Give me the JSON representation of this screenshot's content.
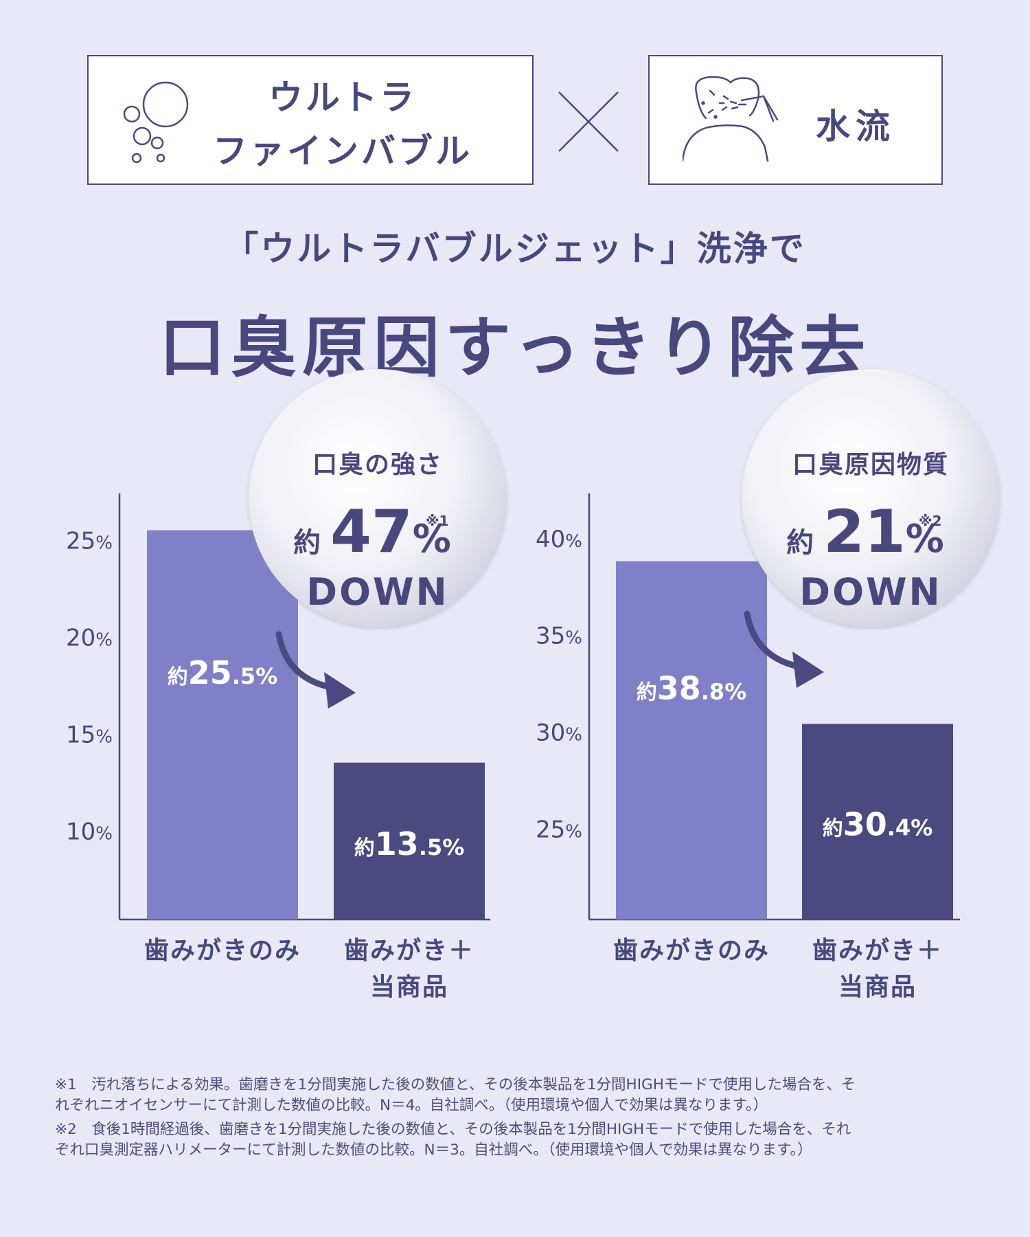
{
  "header": {
    "left_line1": "ウルトラ",
    "left_line2": "ファインバブル",
    "left_icon": "bubbles-icon",
    "cross_icon": "cross-icon",
    "right_icon": "tooth-water-jet-icon",
    "right_label": "水流"
  },
  "subtitle": "「ウルトラバブルジェット」洗浄で",
  "headline": "口臭原因すっきり除去",
  "colors": {
    "bar_light": "#8080c8",
    "bar_dark": "#4a4a80",
    "text": "#48477e",
    "background": "#e9e8f6"
  },
  "chart_data": [
    {
      "type": "bar",
      "categories": [
        "歯みがきのみ",
        "歯みがき＋\n当商品"
      ],
      "values": [
        25.5,
        13.5
      ],
      "value_labels": [
        {
          "prefix": "約",
          "int": "25",
          "dec": ".5%"
        },
        {
          "prefix": "約",
          "int": "13",
          "dec": ".5%"
        }
      ],
      "y_ticks": [
        10,
        15,
        20,
        25
      ],
      "y_tick_labels": [
        "10%",
        "15%",
        "20%",
        "25%"
      ],
      "ylim": [
        5.4,
        27.4
      ],
      "badge": {
        "title": "口臭の強さ",
        "prefix": "約",
        "value": "47",
        "unit": "%",
        "note": "※1",
        "down": "DOWN"
      }
    },
    {
      "type": "bar",
      "categories": [
        "歯みがきのみ",
        "歯みがき＋\n当商品"
      ],
      "values": [
        38.8,
        30.4
      ],
      "value_labels": [
        {
          "prefix": "約",
          "int": "38",
          "dec": ".8%"
        },
        {
          "prefix": "約",
          "int": "30",
          "dec": ".4%"
        }
      ],
      "y_ticks": [
        25,
        30,
        35,
        40
      ],
      "y_tick_labels": [
        "25%",
        "30%",
        "35%",
        "40%"
      ],
      "ylim": [
        20.3,
        42.3
      ],
      "badge": {
        "title": "口臭原因物質",
        "prefix": "約",
        "value": "21",
        "unit": "%",
        "note": "※2",
        "down": "DOWN"
      }
    }
  ],
  "footnotes": [
    "※1　汚れ落ちによる効果。歯磨きを1分間実施した後の数値と、その後本製品を1分間HIGHモードで使用した場合を、そ",
    "れぞれニオイセンサーにて計測した数値の比較。N＝4。自社調べ。（使用環境や個人で効果は異なります。）",
    "※2　食後1時間経過後、歯磨きを1分間実施した後の数値と、その後本製品を1分間HIGHモードで使用した場合を、それ",
    "ぞれ口臭測定器ハリメーターにて計測した数値の比較。N＝3。自社調べ。（使用環境や個人で効果は異なります。）"
  ]
}
